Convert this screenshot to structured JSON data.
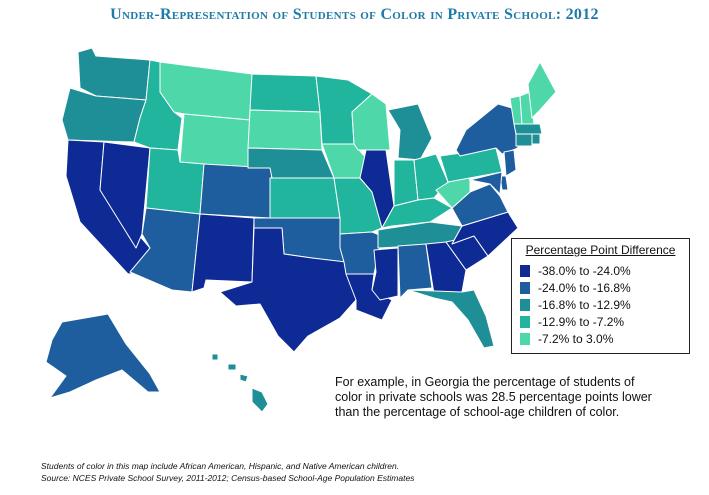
{
  "title": "Under-Representation of Students of Color in Private School: 2012",
  "colors": {
    "title": "#1e7aa8",
    "bin1": "#0e2a94",
    "bin2": "#1f5e9e",
    "bin3": "#1e8f96",
    "bin4": "#22b59e",
    "bin5": "#4ed7a8",
    "border": "#ffffff"
  },
  "legend": {
    "title": "Percentage Point Difference",
    "items": [
      {
        "label": "-38.0% to -24.0%",
        "color": "#0e2a94"
      },
      {
        "label": "-24.0% to -16.8%",
        "color": "#1f5e9e"
      },
      {
        "label": "-16.8% to -12.9%",
        "color": "#1e8f96"
      },
      {
        "label": "-12.9% to -7.2%",
        "color": "#22b59e"
      },
      {
        "label": "-7.2% to 3.0%",
        "color": "#4ed7a8"
      }
    ]
  },
  "example_text": "For example, in Georgia the percentage of students of color in private schools was 28.5 percentage points lower than the percentage of school-age children of color.",
  "footnotes": [
    "Students of color in this map include African American, Hispanic, and Native American children.",
    "Source: NCES Private School Survey, 2011-2012; Census-based School-Age Population Estimates"
  ],
  "state_bins": {
    "WA": 3,
    "OR": 3,
    "CA": 1,
    "NV": 1,
    "ID": 4,
    "MT": 5,
    "WY": 5,
    "UT": 4,
    "AZ": 2,
    "CO": 2,
    "NM": 1,
    "ND": 4,
    "SD": 5,
    "NE": 3,
    "KS": 4,
    "OK": 2,
    "TX": 1,
    "MN": 4,
    "IA": 5,
    "MO": 4,
    "AR": 2,
    "LA": 1,
    "WI": 5,
    "IL": 1,
    "MI": 3,
    "IN": 4,
    "OH": 4,
    "KY": 4,
    "TN": 3,
    "MS": 1,
    "AL": 2,
    "GA": 1,
    "FL": 3,
    "SC": 1,
    "NC": 1,
    "VA": 2,
    "WV": 5,
    "PA": 4,
    "NY": 2,
    "VT": 5,
    "NH": 5,
    "ME": 5,
    "MA": 3,
    "RI": 3,
    "CT": 3,
    "NJ": 2,
    "DE": 2,
    "MD": 2,
    "AK": 2,
    "HI": 3
  }
}
